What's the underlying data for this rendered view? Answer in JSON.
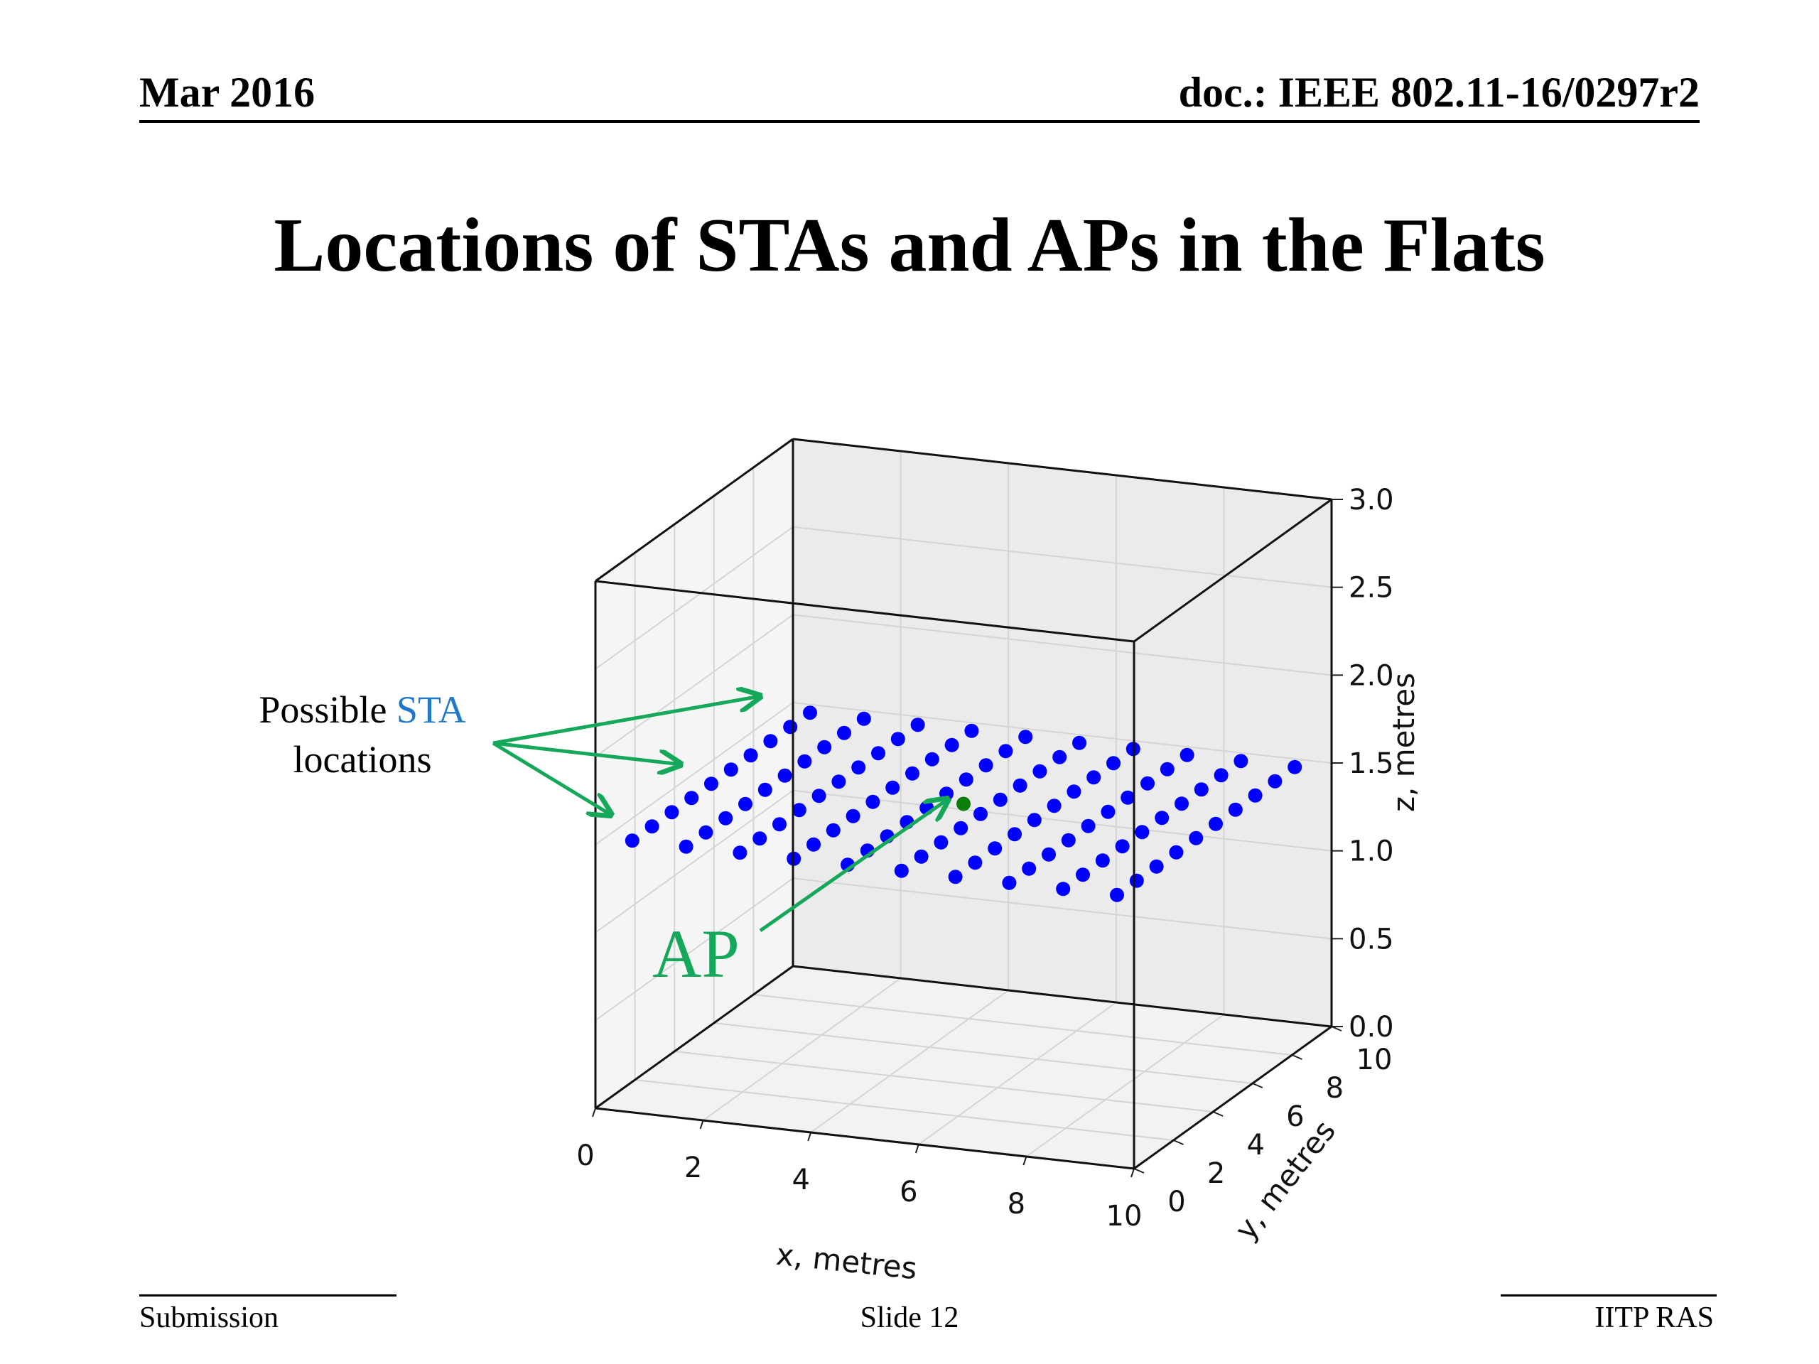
{
  "header": {
    "date": "Mar 2016",
    "doc": "doc.: IEEE 802.11-16/0297r2"
  },
  "title": "Locations of STAs and APs in the Flats",
  "footer": {
    "left": "Submission",
    "center": "Slide 12",
    "right": "IITP RAS"
  },
  "annotations": {
    "sta_prefix": "Possible ",
    "sta_word": "STA",
    "sta_suffix": "locations",
    "ap": "AP",
    "arrow_color": "#16a85a",
    "sta_word_color": "#1f78c8"
  },
  "chart_data": {
    "type": "scatter",
    "projection": "3d",
    "xlabel": "x, metres",
    "ylabel": "y, metres",
    "zlabel": "z, metres",
    "xlim": [
      0,
      10
    ],
    "ylim": [
      0,
      10
    ],
    "zlim": [
      0,
      3.0
    ],
    "xticks": [
      "0",
      "2",
      "4",
      "6",
      "8",
      "10"
    ],
    "yticks": [
      "0",
      "2",
      "4",
      "6",
      "8",
      "10"
    ],
    "zticks": [
      "0.0",
      "0.5",
      "1.0",
      "1.5",
      "2.0",
      "2.5",
      "3.0"
    ],
    "grid": true,
    "series": [
      {
        "marker_color": "#0000ff",
        "grid_x": [
          0.5,
          1.5,
          2.5,
          3.5,
          4.5,
          5.5,
          6.5,
          7.5,
          8.5,
          9.5
        ],
        "grid_y": [
          0.5,
          1.5,
          2.5,
          3.5,
          4.5,
          5.5,
          6.5,
          7.5,
          8.5,
          9.5
        ],
        "grid_y_gap": 6.0,
        "z": 1.5
      },
      {
        "marker_color": "#0a7d0a",
        "points": [
          [
            5.0,
            5.0,
            1.5
          ]
        ]
      }
    ]
  }
}
